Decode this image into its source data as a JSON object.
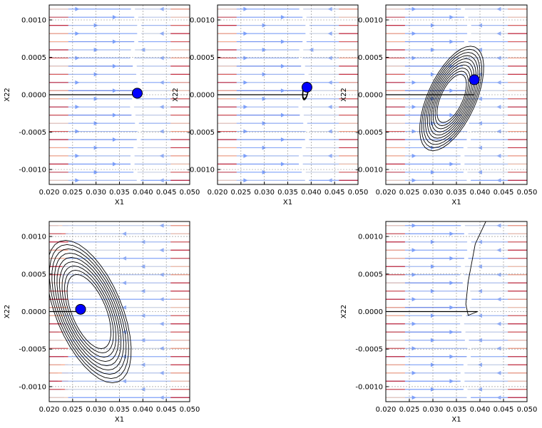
{
  "chart_data": [
    {
      "type": "streamplot",
      "panel": "top-left",
      "xlabel": "X1",
      "ylabel": "X22",
      "xlim": [
        0.02,
        0.05
      ],
      "ylim": [
        -0.0012,
        0.0012
      ],
      "xticks": [
        "0.020",
        "0.025",
        "0.030",
        "0.035",
        "0.040",
        "0.045",
        "0.050"
      ],
      "yticks": [
        "-0.0010",
        "-0.0005",
        "0.0000",
        "0.0005",
        "0.0010"
      ],
      "grid": true,
      "point": {
        "x": 0.0388,
        "y": 2e-05
      },
      "nullcline_x": 0.0385,
      "trajectory": "none"
    },
    {
      "type": "streamplot",
      "panel": "top-middle",
      "xlabel": "X1",
      "ylabel": "X22",
      "xlim": [
        0.02,
        0.05
      ],
      "ylim": [
        -0.0012,
        0.0012
      ],
      "xticks": [
        "0.020",
        "0.025",
        "0.030",
        "0.035",
        "0.040",
        "0.045",
        "0.050"
      ],
      "yticks": [
        "-0.0010",
        "-0.0005",
        "0.0000",
        "0.0005",
        "0.0010"
      ],
      "grid": true,
      "point": {
        "x": 0.0391,
        "y": 0.0001
      },
      "nullcline_x": 0.0385,
      "trajectory": "small"
    },
    {
      "type": "streamplot",
      "panel": "top-right",
      "xlabel": "X1",
      "ylabel": "X22",
      "xlim": [
        0.02,
        0.05
      ],
      "ylim": [
        -0.0012,
        0.0012
      ],
      "xticks": [
        "0.020",
        "0.025",
        "0.030",
        "0.035",
        "0.040",
        "0.045",
        "0.050"
      ],
      "yticks": [
        "-0.0010",
        "-0.0005",
        "0.0000",
        "0.0005",
        "0.0010"
      ],
      "grid": true,
      "point": {
        "x": 0.0388,
        "y": 0.0002
      },
      "nullcline_x": 0.037,
      "trajectory": "wide"
    },
    {
      "type": "streamplot",
      "panel": "bottom-left",
      "xlabel": "X1",
      "ylabel": "X22",
      "xlim": [
        0.02,
        0.05
      ],
      "ylim": [
        -0.0012,
        0.0012
      ],
      "xticks": [
        "0.020",
        "0.025",
        "0.030",
        "0.035",
        "0.040",
        "0.045",
        "0.050"
      ],
      "yticks": [
        "-0.0010",
        "-0.0005",
        "0.0000",
        "0.0005",
        "0.0010"
      ],
      "grid": true,
      "point": {
        "x": 0.0267,
        "y": 3e-05
      },
      "nullcline_x": 0.023,
      "trajectory": "bottomleft"
    },
    {
      "type": "streamplot",
      "panel": "bottom-right",
      "xlabel": "X1",
      "ylabel": "X22",
      "xlim": [
        0.02,
        0.05
      ],
      "ylim": [
        -0.0012,
        0.0012
      ],
      "xticks": [
        "0.020",
        "0.025",
        "0.030",
        "0.035",
        "0.040",
        "0.045",
        "0.050"
      ],
      "yticks": [
        "-0.0010",
        "-0.0005",
        "0.0000",
        "0.0005",
        "0.0010"
      ],
      "grid": true,
      "point": null,
      "nullcline_x": 0.037,
      "trajectory": "curve"
    }
  ]
}
